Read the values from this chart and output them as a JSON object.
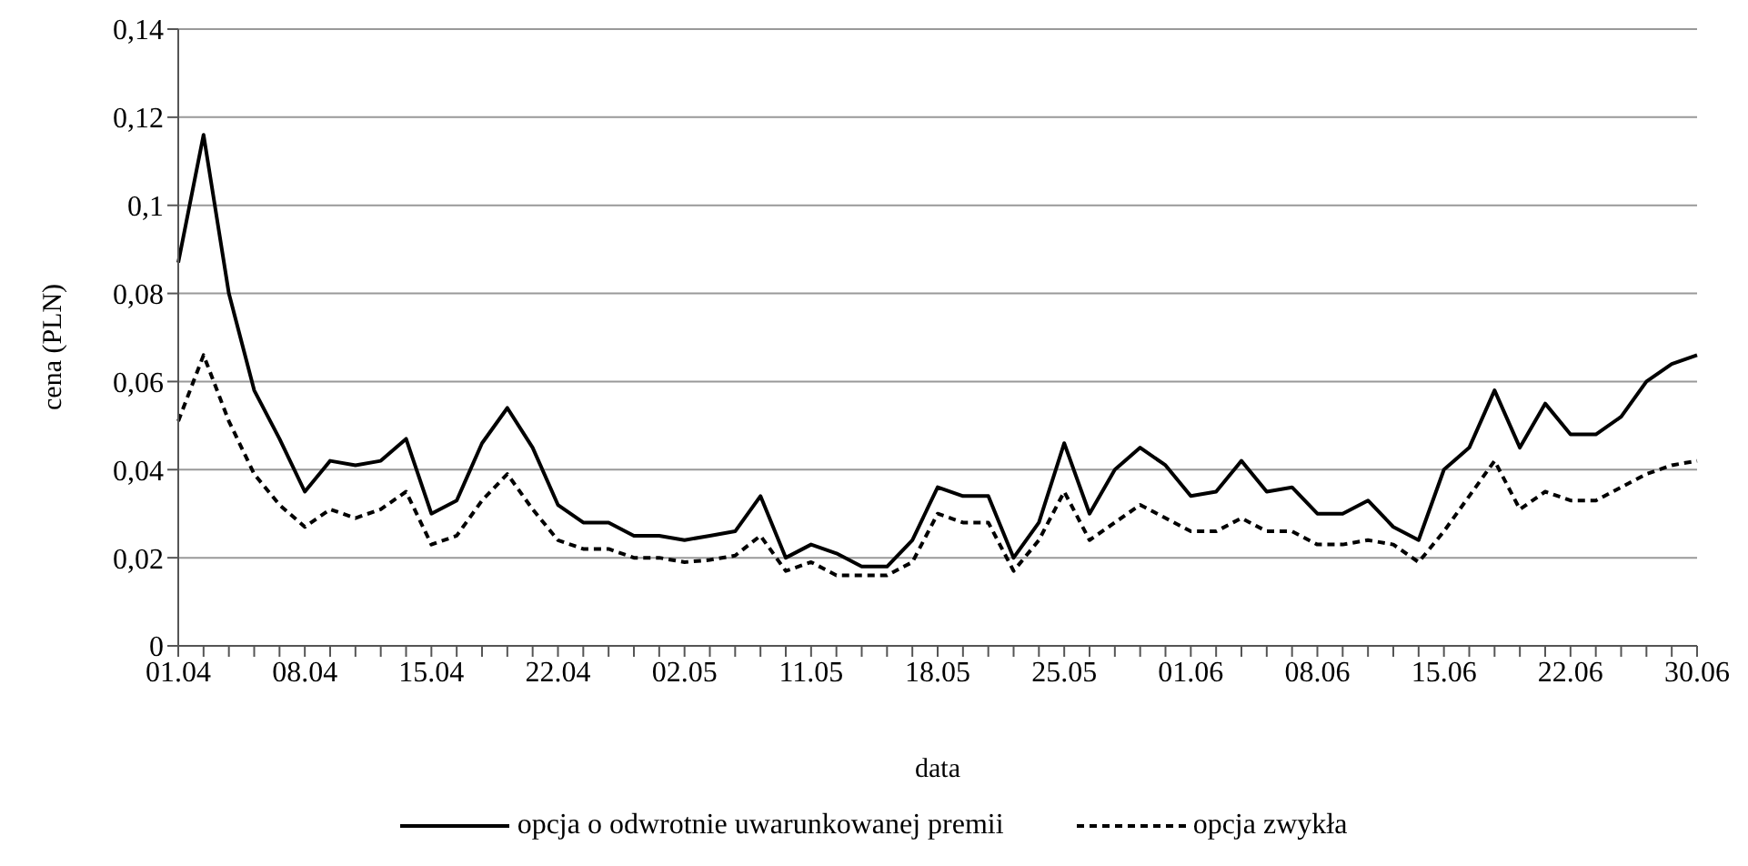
{
  "chart_data": {
    "type": "line",
    "xlabel": "data",
    "ylabel": "cena (PLN)",
    "categories": [
      "01.04",
      null,
      null,
      null,
      null,
      "08.04",
      null,
      null,
      null,
      null,
      "15.04",
      null,
      null,
      null,
      null,
      "22.04",
      null,
      null,
      null,
      null,
      "02.05",
      null,
      null,
      null,
      null,
      "11.05",
      null,
      null,
      null,
      null,
      "18.05",
      null,
      null,
      null,
      null,
      "25.05",
      null,
      null,
      null,
      null,
      "01.06",
      null,
      null,
      null,
      null,
      "08.06",
      null,
      null,
      null,
      null,
      "15.06",
      null,
      null,
      null,
      null,
      "22.06",
      null,
      null,
      null,
      null,
      "30.06"
    ],
    "series": [
      {
        "name": "opcja o odwrotnie uwarunkowanej premii",
        "color": "#000000",
        "line_style": "solid",
        "values": [
          0.087,
          0.116,
          0.08,
          0.058,
          0.047,
          0.035,
          0.042,
          0.041,
          0.042,
          0.047,
          0.03,
          0.033,
          0.046,
          0.054,
          0.045,
          0.032,
          0.028,
          0.028,
          0.025,
          0.025,
          0.024,
          0.025,
          0.026,
          0.034,
          0.02,
          0.023,
          0.021,
          0.018,
          0.018,
          0.024,
          0.036,
          0.034,
          0.034,
          0.02,
          0.028,
          0.046,
          0.03,
          0.04,
          0.045,
          0.041,
          0.034,
          0.035,
          0.042,
          0.035,
          0.036,
          0.03,
          0.03,
          0.033,
          0.027,
          0.024,
          0.04,
          0.045,
          0.058,
          0.045,
          0.055,
          0.048,
          0.048,
          0.052,
          0.06,
          0.064,
          0.066
        ]
      },
      {
        "name": "opcja zwykła",
        "color": "#000000",
        "line_style": "dashed",
        "values": [
          0.051,
          0.066,
          0.051,
          0.039,
          0.032,
          0.027,
          0.031,
          0.029,
          0.031,
          0.035,
          0.023,
          0.025,
          0.033,
          0.039,
          0.031,
          0.024,
          0.022,
          0.022,
          0.02,
          0.02,
          0.019,
          0.0195,
          0.0205,
          0.025,
          0.017,
          0.019,
          0.016,
          0.016,
          0.016,
          0.019,
          0.03,
          0.028,
          0.028,
          0.017,
          0.024,
          0.035,
          0.024,
          0.028,
          0.032,
          0.029,
          0.026,
          0.026,
          0.029,
          0.026,
          0.026,
          0.023,
          0.023,
          0.024,
          0.023,
          0.019,
          0.026,
          0.034,
          0.042,
          0.031,
          0.035,
          0.033,
          0.033,
          0.036,
          0.039,
          0.041,
          0.042
        ]
      }
    ],
    "ylim": [
      0,
      0.14
    ],
    "yticks": [
      {
        "value": 0,
        "label": "0"
      },
      {
        "value": 0.02,
        "label": "0,02"
      },
      {
        "value": 0.04,
        "label": "0,04"
      },
      {
        "value": 0.06,
        "label": "0,06"
      },
      {
        "value": 0.08,
        "label": "0,08"
      },
      {
        "value": 0.1,
        "label": "0,1"
      },
      {
        "value": 0.12,
        "label": "0,12"
      },
      {
        "value": 0.14,
        "label": "0,14"
      }
    ],
    "grid": "y",
    "legend": "bottom",
    "marker": "none"
  }
}
